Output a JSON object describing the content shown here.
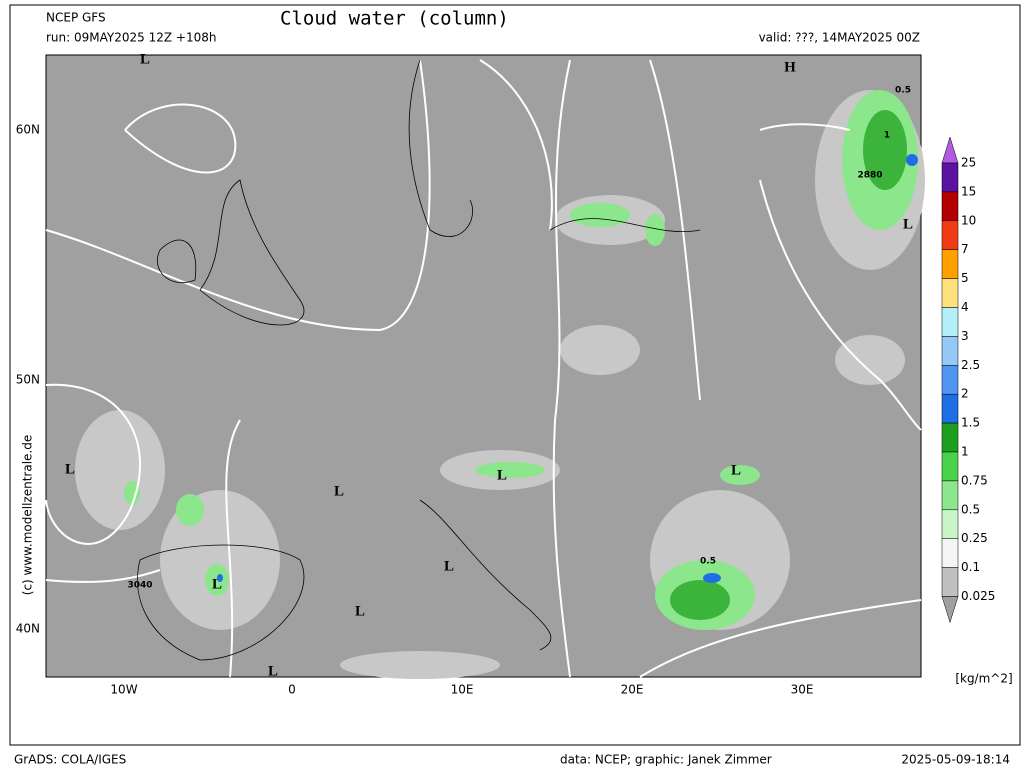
{
  "header": {
    "model": "NCEP GFS",
    "title": "Cloud water (column)",
    "run": "run: 09MAY2025 12Z +108h",
    "valid": "valid: ???, 14MAY2025 00Z"
  },
  "map": {
    "lat_labels": [
      "60N",
      "50N",
      "40N"
    ],
    "lon_labels": [
      "10W",
      "0",
      "10E",
      "20E",
      "30E"
    ],
    "annotations": [
      "L",
      "L",
      "L",
      "L",
      "L",
      "L",
      "L",
      "L",
      "L",
      "L",
      "H",
      "2880",
      "3040",
      "0.5",
      "0.5",
      "1"
    ]
  },
  "colorbar": {
    "levels": [
      25,
      15,
      10,
      7,
      5,
      4,
      3,
      2.5,
      2,
      1.5,
      1,
      0.75,
      0.5,
      0.25,
      0.1,
      0.025
    ],
    "over_color": "#b25ae0",
    "segment_colors": [
      "#5a14a0",
      "#b40000",
      "#f03c14",
      "#ffa000",
      "#ffe17d",
      "#b4f0fa",
      "#96c8f5",
      "#5096f0",
      "#1e6ee6",
      "#1ea01e",
      "#4bd24b",
      "#8ce68c",
      "#c8f5c8",
      "#f5f5f5",
      "#c0c0c0"
    ],
    "under_color": "#a0a0a0",
    "unit": "[kg/m^2]"
  },
  "side_label": "(c) www.modellzentrale.de",
  "footer": {
    "left": "GrADS: COLA/IGES",
    "center": "data: NCEP; graphic: Janek Zimmer",
    "right": "2025-05-09-18:14"
  }
}
